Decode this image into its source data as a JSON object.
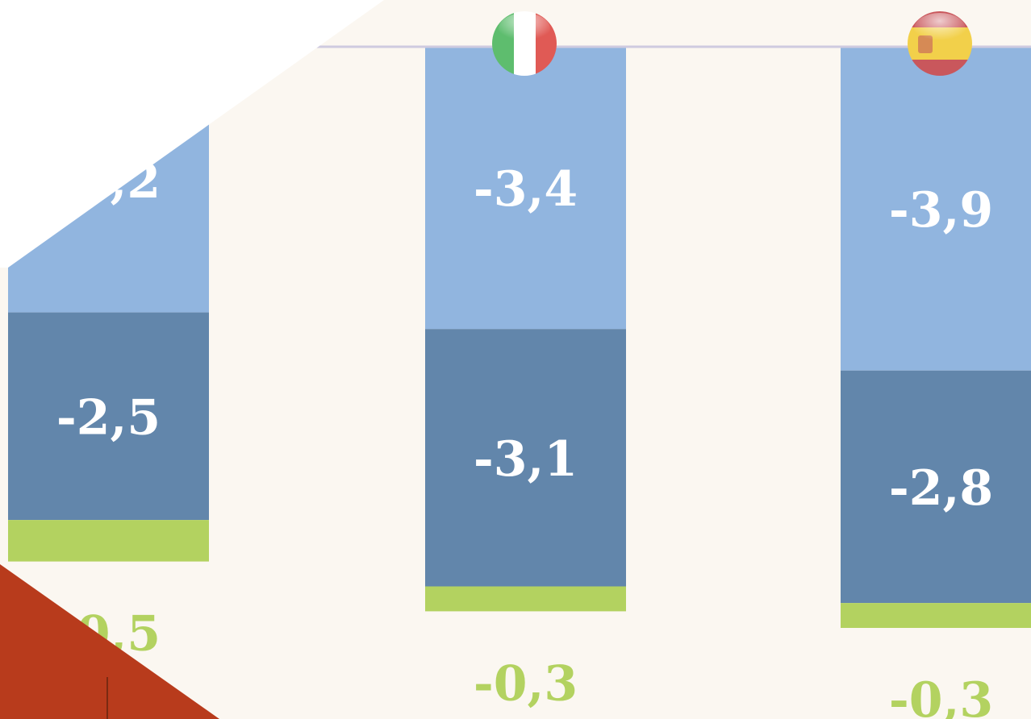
{
  "chart_data": {
    "type": "bar",
    "stacked": true,
    "direction": "downward",
    "categories": [
      "",
      "Italy",
      "Spain"
    ],
    "flag_icons": [
      "",
      "italy-flag-icon",
      "spain-flag-icon"
    ],
    "series": [
      {
        "color": "#91b5df",
        "values": [
          -3.2,
          -3.4,
          -3.9
        ],
        "labels": [
          "-3,2",
          "-3,4",
          "-3,9"
        ]
      },
      {
        "color": "#6286ab",
        "values": [
          -2.5,
          -3.1,
          -2.8
        ],
        "labels": [
          "-2,5",
          "-3,1",
          "-2,8"
        ]
      },
      {
        "color": "#b3d260",
        "values": [
          -0.5,
          -0.3,
          -0.3
        ],
        "labels": [
          "-0,5",
          "-0,3",
          "-0,3"
        ]
      }
    ],
    "colors": {
      "background": "#fbf7f1",
      "baseline": "#cfcbe0",
      "white_overlay": "#ffffff",
      "red_overlay": "#b83b1c"
    }
  }
}
